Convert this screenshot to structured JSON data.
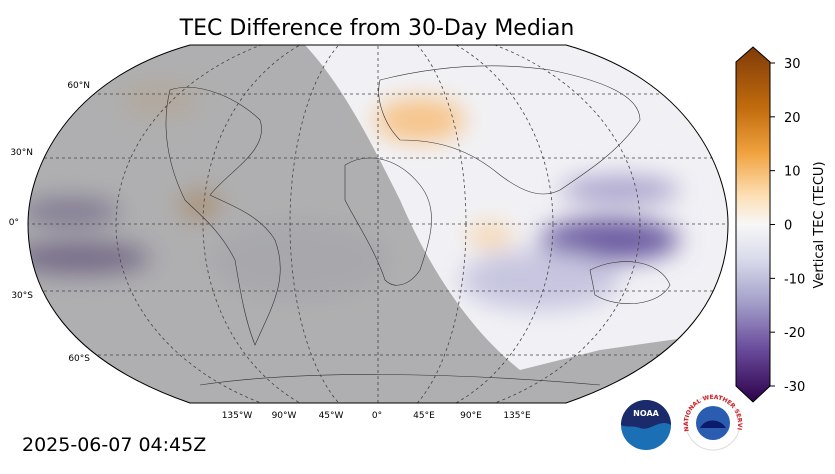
{
  "title": "TEC Difference from 30-Day Median",
  "timestamp": "2025-06-07 04:45Z",
  "map": {
    "lat_labels": [
      "60°N",
      "30°N",
      "0°",
      "30°S",
      "60°S"
    ],
    "lon_labels": [
      "135°W",
      "90°W",
      "45°W",
      "0°",
      "45°E",
      "90°E",
      "135°E"
    ]
  },
  "colorbar": {
    "label": "Vertical TEC (TECU)",
    "lim": [
      -30,
      30
    ],
    "ticks": [
      -30,
      -20,
      -10,
      0,
      10,
      20,
      30
    ]
  },
  "logos": {
    "noaa": "NOAA",
    "nws": "NATIONAL WEATHER SERVICE"
  }
}
